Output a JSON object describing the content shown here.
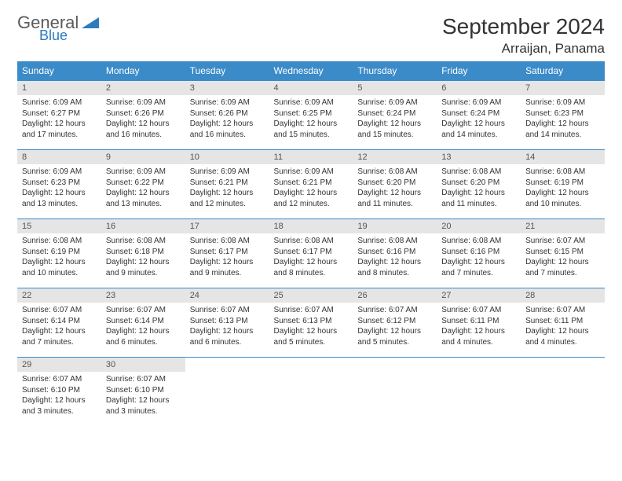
{
  "logo": {
    "general": "General",
    "blue": "Blue"
  },
  "title": "September 2024",
  "location": "Arraijan, Panama",
  "colors": {
    "header_bg": "#3b8bc9",
    "header_text": "#ffffff",
    "daynum_bg": "#e5e5e5",
    "daynum_text": "#555555",
    "body_text": "#333333",
    "row_border": "#3b8bc9",
    "logo_gray": "#5a5a5a",
    "logo_blue": "#2b7bbf"
  },
  "day_names": [
    "Sunday",
    "Monday",
    "Tuesday",
    "Wednesday",
    "Thursday",
    "Friday",
    "Saturday"
  ],
  "weeks": [
    [
      {
        "n": "1",
        "sr": "6:09 AM",
        "ss": "6:27 PM",
        "dl": "12 hours and 17 minutes."
      },
      {
        "n": "2",
        "sr": "6:09 AM",
        "ss": "6:26 PM",
        "dl": "12 hours and 16 minutes."
      },
      {
        "n": "3",
        "sr": "6:09 AM",
        "ss": "6:26 PM",
        "dl": "12 hours and 16 minutes."
      },
      {
        "n": "4",
        "sr": "6:09 AM",
        "ss": "6:25 PM",
        "dl": "12 hours and 15 minutes."
      },
      {
        "n": "5",
        "sr": "6:09 AM",
        "ss": "6:24 PM",
        "dl": "12 hours and 15 minutes."
      },
      {
        "n": "6",
        "sr": "6:09 AM",
        "ss": "6:24 PM",
        "dl": "12 hours and 14 minutes."
      },
      {
        "n": "7",
        "sr": "6:09 AM",
        "ss": "6:23 PM",
        "dl": "12 hours and 14 minutes."
      }
    ],
    [
      {
        "n": "8",
        "sr": "6:09 AM",
        "ss": "6:23 PM",
        "dl": "12 hours and 13 minutes."
      },
      {
        "n": "9",
        "sr": "6:09 AM",
        "ss": "6:22 PM",
        "dl": "12 hours and 13 minutes."
      },
      {
        "n": "10",
        "sr": "6:09 AM",
        "ss": "6:21 PM",
        "dl": "12 hours and 12 minutes."
      },
      {
        "n": "11",
        "sr": "6:09 AM",
        "ss": "6:21 PM",
        "dl": "12 hours and 12 minutes."
      },
      {
        "n": "12",
        "sr": "6:08 AM",
        "ss": "6:20 PM",
        "dl": "12 hours and 11 minutes."
      },
      {
        "n": "13",
        "sr": "6:08 AM",
        "ss": "6:20 PM",
        "dl": "12 hours and 11 minutes."
      },
      {
        "n": "14",
        "sr": "6:08 AM",
        "ss": "6:19 PM",
        "dl": "12 hours and 10 minutes."
      }
    ],
    [
      {
        "n": "15",
        "sr": "6:08 AM",
        "ss": "6:19 PM",
        "dl": "12 hours and 10 minutes."
      },
      {
        "n": "16",
        "sr": "6:08 AM",
        "ss": "6:18 PM",
        "dl": "12 hours and 9 minutes."
      },
      {
        "n": "17",
        "sr": "6:08 AM",
        "ss": "6:17 PM",
        "dl": "12 hours and 9 minutes."
      },
      {
        "n": "18",
        "sr": "6:08 AM",
        "ss": "6:17 PM",
        "dl": "12 hours and 8 minutes."
      },
      {
        "n": "19",
        "sr": "6:08 AM",
        "ss": "6:16 PM",
        "dl": "12 hours and 8 minutes."
      },
      {
        "n": "20",
        "sr": "6:08 AM",
        "ss": "6:16 PM",
        "dl": "12 hours and 7 minutes."
      },
      {
        "n": "21",
        "sr": "6:07 AM",
        "ss": "6:15 PM",
        "dl": "12 hours and 7 minutes."
      }
    ],
    [
      {
        "n": "22",
        "sr": "6:07 AM",
        "ss": "6:14 PM",
        "dl": "12 hours and 7 minutes."
      },
      {
        "n": "23",
        "sr": "6:07 AM",
        "ss": "6:14 PM",
        "dl": "12 hours and 6 minutes."
      },
      {
        "n": "24",
        "sr": "6:07 AM",
        "ss": "6:13 PM",
        "dl": "12 hours and 6 minutes."
      },
      {
        "n": "25",
        "sr": "6:07 AM",
        "ss": "6:13 PM",
        "dl": "12 hours and 5 minutes."
      },
      {
        "n": "26",
        "sr": "6:07 AM",
        "ss": "6:12 PM",
        "dl": "12 hours and 5 minutes."
      },
      {
        "n": "27",
        "sr": "6:07 AM",
        "ss": "6:11 PM",
        "dl": "12 hours and 4 minutes."
      },
      {
        "n": "28",
        "sr": "6:07 AM",
        "ss": "6:11 PM",
        "dl": "12 hours and 4 minutes."
      }
    ],
    [
      {
        "n": "29",
        "sr": "6:07 AM",
        "ss": "6:10 PM",
        "dl": "12 hours and 3 minutes."
      },
      {
        "n": "30",
        "sr": "6:07 AM",
        "ss": "6:10 PM",
        "dl": "12 hours and 3 minutes."
      },
      null,
      null,
      null,
      null,
      null
    ]
  ],
  "labels": {
    "sunrise": "Sunrise:",
    "sunset": "Sunset:",
    "daylight": "Daylight:"
  }
}
